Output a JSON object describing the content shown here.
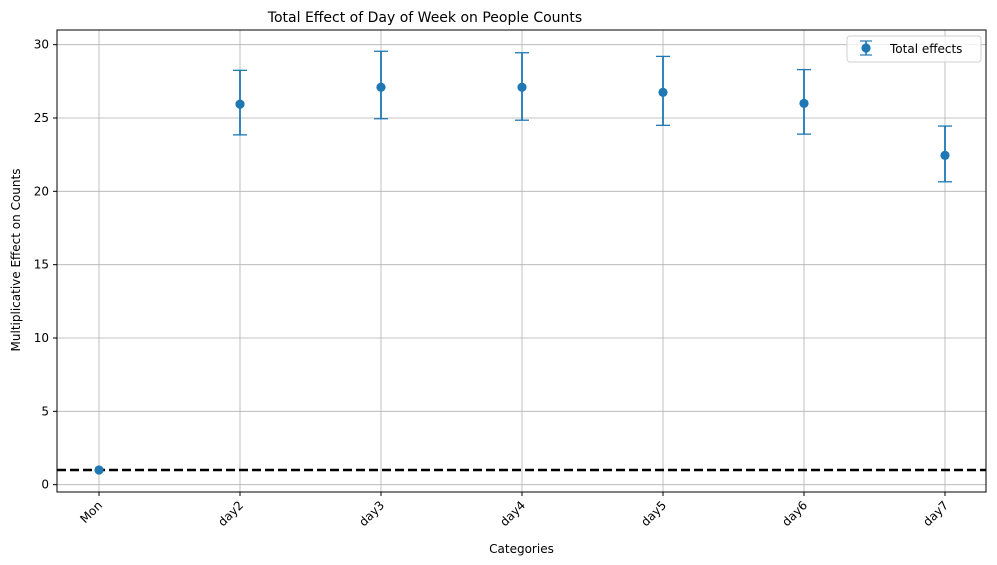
{
  "chart_data": {
    "type": "scatter",
    "title": "Total Effect of Day of Week on People Counts",
    "xlabel": "Categories",
    "ylabel": "Multiplicative Effect on Counts",
    "categories": [
      "Mon",
      "day2",
      "day3",
      "day4",
      "day5",
      "day6",
      "day7"
    ],
    "series": [
      {
        "name": "Total effects",
        "values": [
          1.0,
          25.95,
          27.1,
          27.1,
          26.75,
          26.0,
          22.45
        ],
        "err_low": [
          1.0,
          23.85,
          24.95,
          24.85,
          24.5,
          23.9,
          20.65
        ],
        "err_high": [
          1.0,
          28.25,
          29.55,
          29.45,
          29.2,
          28.3,
          24.45
        ]
      }
    ],
    "reference_line": {
      "y": 1.0,
      "style": "dashed",
      "color": "#000000"
    },
    "ylim": [
      -0.5,
      31.0
    ],
    "yticks": [
      0,
      5,
      10,
      15,
      20,
      25,
      30
    ],
    "grid": true,
    "legend_position": "top-right",
    "colors": {
      "series": "#1f77b4",
      "grid": "#b0b0b0",
      "axis": "#000000"
    }
  }
}
